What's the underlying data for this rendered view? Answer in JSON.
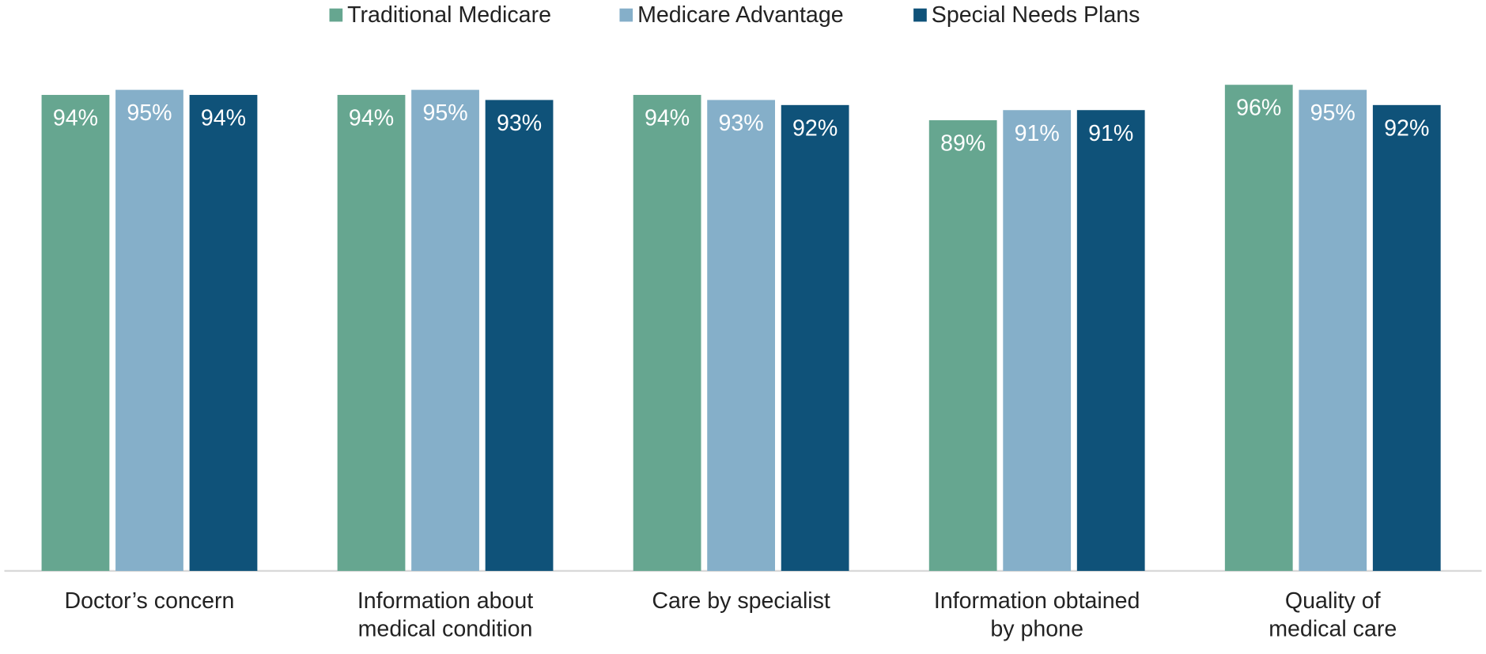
{
  "chart_data": {
    "type": "bar",
    "categories": [
      [
        "Doctor’s concern"
      ],
      [
        "Information about",
        "medical condition"
      ],
      [
        "Care by specialist"
      ],
      [
        "Information obtained",
        "by phone"
      ],
      [
        "Quality of",
        "medical care"
      ]
    ],
    "series": [
      {
        "name": "Traditional Medicare",
        "color": "#66a690",
        "values": [
          94,
          94,
          94,
          89,
          96
        ],
        "value_labels": [
          "94%",
          "94%",
          "94%",
          "89%",
          "96%"
        ]
      },
      {
        "name": "Medicare Advantage",
        "color": "#85afc9",
        "values": [
          95,
          95,
          93,
          91,
          95
        ],
        "value_labels": [
          "95%",
          "95%",
          "93%",
          "91%",
          "95%"
        ]
      },
      {
        "name": "Special Needs Plans",
        "color": "#0f5279",
        "values": [
          94,
          93,
          92,
          91,
          92
        ],
        "value_labels": [
          "94%",
          "93%",
          "92%",
          "91%",
          "92%"
        ]
      }
    ],
    "ylim": [
      0,
      100
    ],
    "legend": "top"
  }
}
